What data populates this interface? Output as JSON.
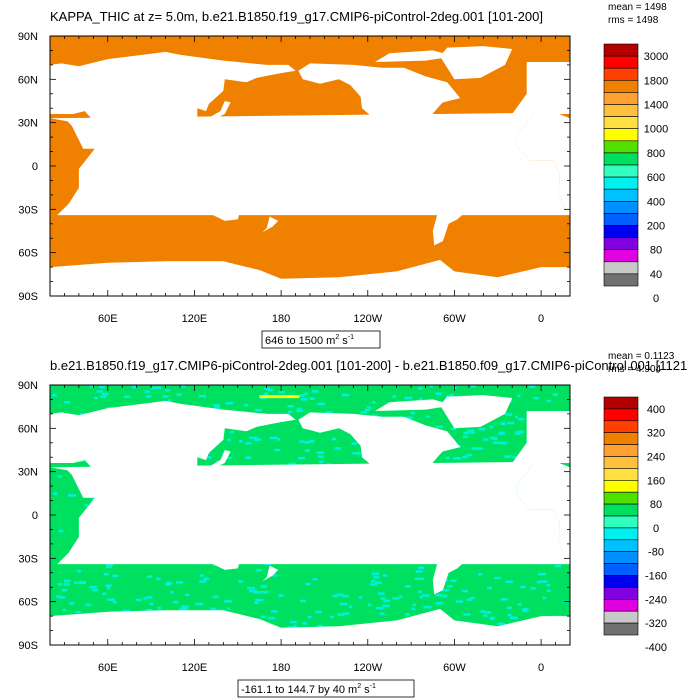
{
  "chart_data": [
    {
      "type": "heatmap",
      "title": "KAPPA_THIC at z=   5.0m, b.e21.B1850.f19_g17.CMIP6-piControl-2deg.001 [101-200]",
      "stats": [
        "mean = 1498",
        "rms = 1498"
      ],
      "range_label": "646 to 1500 m",
      "range_units_sup": "2",
      "range_units_tail": " s",
      "range_units_sup2": "-1",
      "xticks": [
        "60E",
        "120E",
        "180",
        "120W",
        "60W",
        "0"
      ],
      "yticks": [
        "90N",
        "60N",
        "30N",
        "0",
        "30S",
        "60S",
        "90S"
      ],
      "colorbar_labels": [
        "3000",
        "1800",
        "1400",
        "1000",
        "800",
        "600",
        "400",
        "200",
        "80",
        "40",
        "0"
      ],
      "colorbar_colors": [
        "#b40000",
        "#ff0000",
        "#ff4000",
        "#f08000",
        "#ffa030",
        "#ffc040",
        "#ffe040",
        "#ffff00",
        "#50e000",
        "#00e060",
        "#30ffc0",
        "#00f0f0",
        "#00c0ff",
        "#0090ff",
        "#0060ff",
        "#0000f0",
        "#8000e0",
        "#e000e0",
        "#c8c8c8",
        "#707070"
      ],
      "ocean_value": 1498,
      "ocean_color": "#f08000",
      "land_color": "#ffffff"
    },
    {
      "type": "heatmap",
      "title": "b.e21.B1850.f19_g17.CMIP6-piControl-2deg.001 [101-200] - b.e21.B1850.f09_g17.CMIP6-piControl.001 [1121",
      "stats": [
        "mean = 0.1123",
        "rms = 4.904"
      ],
      "range_label": "-161.1 to 144.7 by 40 m",
      "range_units_sup": "2",
      "range_units_tail": " s",
      "range_units_sup2": "-1",
      "xticks": [
        "60E",
        "120E",
        "180",
        "120W",
        "60W",
        "0"
      ],
      "yticks": [
        "90N",
        "60N",
        "30N",
        "0",
        "30S",
        "60S",
        "90S"
      ],
      "colorbar_labels": [
        "400",
        "320",
        "240",
        "160",
        "80",
        "0",
        "-80",
        "-160",
        "-240",
        "-320",
        "-400"
      ],
      "colorbar_colors": [
        "#b40000",
        "#ff0000",
        "#ff4000",
        "#f08000",
        "#ffa030",
        "#ffc040",
        "#ffe040",
        "#ffff00",
        "#50e000",
        "#00e060",
        "#30ffc0",
        "#00f0f0",
        "#00c0ff",
        "#0090ff",
        "#0060ff",
        "#0000f0",
        "#8000e0",
        "#e000e0",
        "#c8c8c8",
        "#707070"
      ],
      "ocean_value": 0,
      "ocean_color": "#00e060",
      "noise_color": "#00f0e0",
      "land_color": "#ffffff"
    }
  ]
}
